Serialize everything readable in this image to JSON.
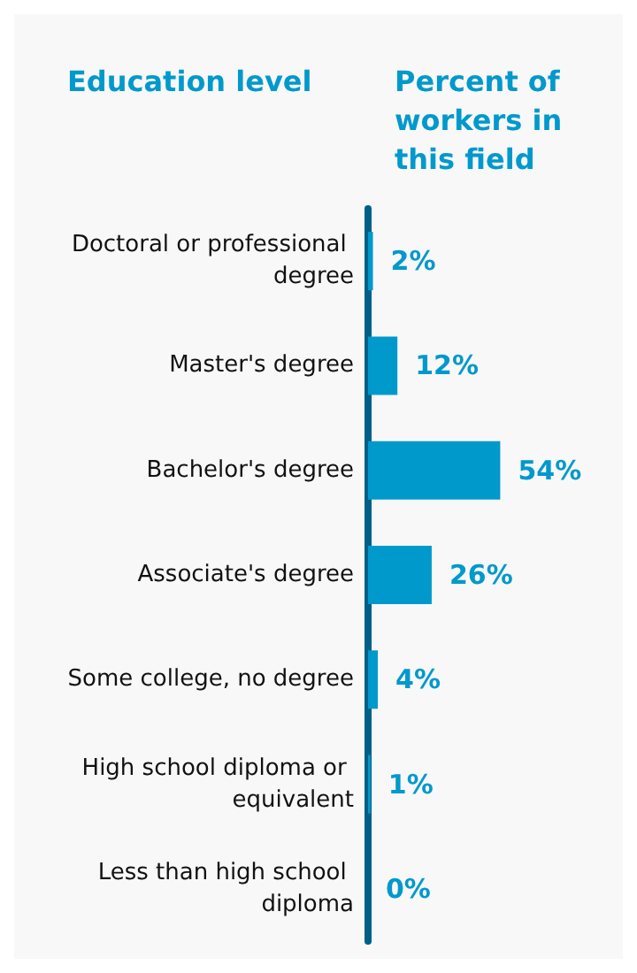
{
  "chart_data": {
    "type": "bar",
    "orientation": "horizontal",
    "ylabel": "Education level",
    "xlabel": "Percent of workers in this field",
    "categories": [
      "Doctoral or professional degree",
      "Master's degree",
      "Bachelor's degree",
      "Associate's degree",
      "Some college, no degree",
      "High school diploma or equivalent",
      "Less than high school diploma"
    ],
    "values": [
      2,
      12,
      54,
      26,
      4,
      1,
      0
    ],
    "value_labels": [
      "2%",
      "12%",
      "54%",
      "26%",
      "4%",
      "1%",
      "0%"
    ],
    "color": "#0099cc",
    "tick_labels": "y"
  }
}
